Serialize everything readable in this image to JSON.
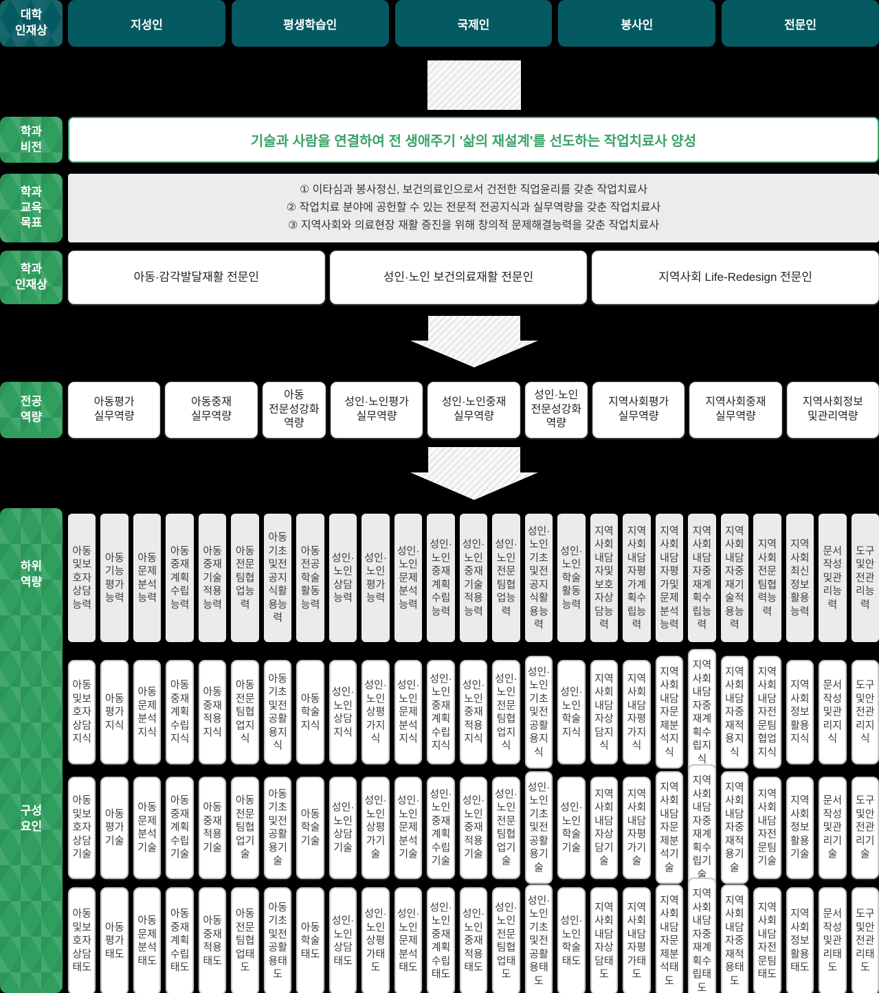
{
  "colors": {
    "page_bg": "#000000",
    "header_teal": "#055a61",
    "label_green": "#2f9e5f",
    "vision_green": "#3aa167",
    "goals_panel_gray": "#ececec",
    "sub_box_gray": "#ebebeb"
  },
  "university_ideal": {
    "label": "대학\n인재상",
    "items": [
      "지성인",
      "평생학습인",
      "국제인",
      "봉사인",
      "전문인"
    ]
  },
  "dept_vision": {
    "label": "학과\n비전",
    "text": "기술과 사람을 연결하여 전 생애주기 '삶의 재설계'를 선도하는 작업치료사 양성"
  },
  "dept_goals": {
    "label": "학과\n교육\n목표",
    "items": [
      "① 이타심과 봉사정신, 보건의료인으로서 건전한 직업윤리를 갖춘 작업치료사",
      "② 작업치료 분야에 공헌할 수 있는 전문적 전공지식과 실무역량을 갖춘 작업치료사",
      "③ 지역사회와 의료현장 재활 증진을 위해 창의적 문제해결능력을 갖춘 작업치료사"
    ]
  },
  "dept_ideal": {
    "label": "학과\n인재상",
    "items": [
      "아동·감각발달재활 전문인",
      "성인·노인 보건의료재활 전문인",
      "지역사회 Life-Redesign 전문인"
    ]
  },
  "major_competency": {
    "label": "전공\n역량",
    "items": [
      "아동평가\n실무역량",
      "아동중재\n실무역량",
      "아동\n전문성강화\n역량",
      "성인·노인평가\n실무역량",
      "성인·노인중재\n실무역량",
      "성인·노인\n전문성강화\n역량",
      "지역사회평가\n실무역량",
      "지역사회중재\n실무역량",
      "지역사회정보\n및관리역량"
    ]
  },
  "sub_competency": {
    "label": "하위\n역량",
    "items": [
      "아동및보호자상담능력",
      "아동기능평가능력",
      "아동문제분석능력",
      "아동중재계획수립능력",
      "아동중재기술적용능력",
      "아동전문팀협업능력",
      "아동기초및전공지식활용능력",
      "아동전공학술활동능력",
      "성인·노인상담능력",
      "성인·노인평가능력",
      "성인·노인문제분석능력",
      "성인·노인중재계획수립능력",
      "성인·노인중재기술적용능력",
      "성인·노인전문팀협업능력",
      "성인·노인기초및전공지식활용능력",
      "성인·노인학술활동능력",
      "지역사회내담자및보호자상담능력",
      "지역사회내담자평가계획수립능력",
      "지역사회내담자평가및문제분석능력",
      "지역사회내담자중재계획수립능력",
      "지역사회내담자중재기술적용능력",
      "지역사회전문팀협력능력",
      "지역사회최신정보활용능력",
      "문서작성및관리능력",
      "도구및안전관리능력"
    ]
  },
  "components": {
    "label": "구성\n요인",
    "knowledge": [
      "아동및보호자상담지식",
      "아동평가지식",
      "아동문제분석지식",
      "아동중재계획수립지식",
      "아동중재적용지식",
      "아동전문팀협업지식",
      "아동기초및전공활용지식",
      "아동학술지식",
      "성인·노인상담지식",
      "성인·노인상평가지식",
      "성인·노인문제분석지식",
      "성인·노인중재계획수립지식",
      "성인·노인중재적용지식",
      "성인·노인전문팀협업지식",
      "성인·노인기초및전공활용지식",
      "성인·노인학술지식",
      "지역사회내담자상담지식",
      "지역사회내담자평가지식",
      "지역사회내담자문제분석지식",
      "지역사회내담자중재계획수립지식",
      "지역사회내담자중재적용지식",
      "지역사회내담자전문팀협업지식",
      "지역사회정보활용지식",
      "문서작성및관리지식",
      "도구및안전관리지식"
    ],
    "skill": [
      "아동및보호자상담기술",
      "아동평가기술",
      "아동문제분석기술",
      "아동중재계획수립기술",
      "아동중재적용기술",
      "아동전문팀협업기술",
      "아동기초및전공활용기술",
      "아동학술기술",
      "성인·노인상담기술",
      "성인·노인상평가기술",
      "성인·노인문제분석기술",
      "성인·노인중재계획수립기술",
      "성인·노인중재적용기술",
      "성인·노인전문팀협업기술",
      "성인·노인기초및전공활용기술",
      "성인·노인학술기술",
      "지역사회내담자상담기술",
      "지역사회내담자평가기술",
      "지역사회내담자문제분석기술",
      "지역사회내담자중재계획수립기술",
      "지역사회내담자중재적용기술",
      "지역사회내담자전문팀기술",
      "지역사회정보활용기술",
      "문서작성및관리기술",
      "도구및안전관리기술"
    ],
    "attitude": [
      "아동및보호자상담태도",
      "아동평가태도",
      "아동문제분석태도",
      "아동중재계획수립태도",
      "아동중재적용태도",
      "아동전문팀협업태도",
      "아동기초및전공활용태도",
      "아동학술태도",
      "성인·노인상담태도",
      "성인·노인상평가태도",
      "성인·노인문제분석태도",
      "성인·노인중재계획수립태도",
      "성인·노인중재적용태도",
      "성인·노인전문팀협업태도",
      "성인·노인기초및전공활용태도",
      "성인·노인학술태도",
      "지역사회내담자상담태도",
      "지역사회내담자평가태도",
      "지역사회내담자문제분석태도",
      "지역사회내담자중재계획수립태도",
      "지역사회내담자중재적용태도",
      "지역사회내담자전문팀태도",
      "지역사회정보활용태도",
      "문서작성및관리태도",
      "도구및안전관리태도"
    ]
  }
}
